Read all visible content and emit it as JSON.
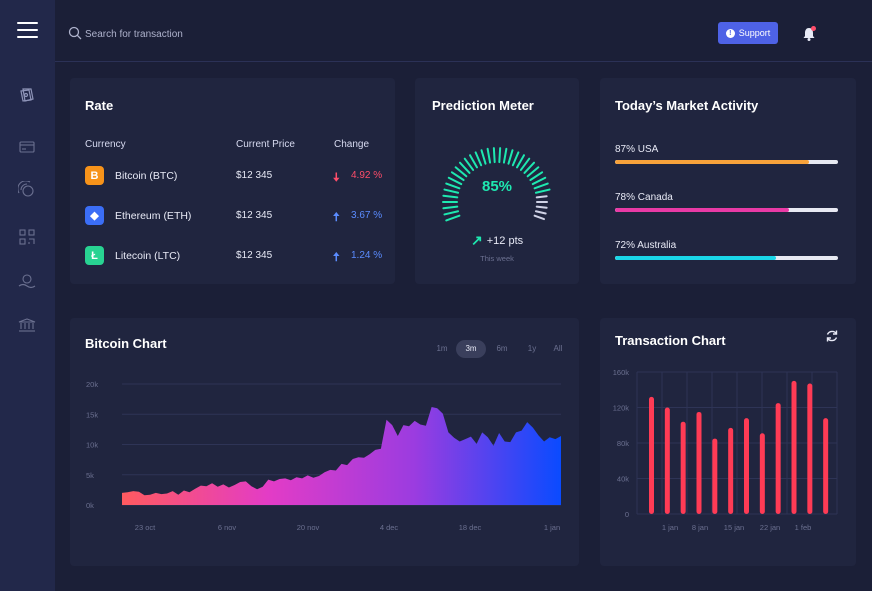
{
  "header": {
    "search_placeholder": "Search for transaction",
    "support_label": "Support"
  },
  "sidebar": {
    "items": [
      {
        "icon": "wallet-icon"
      },
      {
        "icon": "card-icon"
      },
      {
        "icon": "coins-icon"
      },
      {
        "icon": "qr-icon"
      },
      {
        "icon": "exchange-icon"
      },
      {
        "icon": "bank-icon"
      }
    ]
  },
  "rate": {
    "title": "Rate",
    "col_currency": "Currency",
    "col_price": "Current Price",
    "col_change": "Change",
    "rows": [
      {
        "name": "Bitcoin (BTC)",
        "symbol": "B",
        "color": "#f7931a",
        "price": "$12 345",
        "change": "4.92 %",
        "direction": "down"
      },
      {
        "name": "Ethereum (ETH)",
        "symbol": "◆",
        "color": "#3b6ef6",
        "price": "$12 345",
        "change": "3.67 %",
        "direction": "up"
      },
      {
        "name": "Litecoin (LTC)",
        "symbol": "Ł",
        "color": "#28d392",
        "price": "$12 345",
        "change": "1.24 %",
        "direction": "up"
      }
    ]
  },
  "prediction": {
    "title": "Prediction Meter",
    "value": "85%",
    "fraction": 0.85,
    "pts": "+12 pts",
    "period": "This week"
  },
  "market": {
    "title": "Today’s Market Activity",
    "items": [
      {
        "label": "87% USA",
        "value": 0.87,
        "color": "#f7a23b"
      },
      {
        "label": "78% Canada",
        "value": 0.78,
        "color": "#e93aa6"
      },
      {
        "label": "72% Australia",
        "value": 0.72,
        "color": "#1ad6e8"
      }
    ]
  },
  "bitcoin_chart": {
    "title": "Bitcoin Chart",
    "ranges": [
      "1m",
      "3m",
      "6m",
      "1y",
      "All"
    ],
    "active_range": "3m"
  },
  "transaction_chart": {
    "title": "Transaction Chart"
  },
  "chart_data": [
    {
      "type": "area",
      "title": "Bitcoin Chart",
      "y_ticks": [
        "0k",
        "5k",
        "10k",
        "15k",
        "20k"
      ],
      "ylim": [
        0,
        20000
      ],
      "x_ticks": [
        "23 oct",
        "6 nov",
        "20 nov",
        "4 dec",
        "18 dec",
        "1 jan"
      ],
      "values": [
        2000,
        2100,
        2300,
        2200,
        1600,
        1700,
        2000,
        1800,
        1900,
        2300,
        1700,
        2400,
        2100,
        2700,
        3200,
        3100,
        3600,
        3000,
        3400,
        2900,
        3300,
        3800,
        3900,
        3100,
        2600,
        3000,
        4200,
        3900,
        4300,
        4400,
        4100,
        4600,
        4400,
        4900,
        4500,
        4800,
        5400,
        5800,
        5700,
        6800,
        6600,
        7600,
        7900,
        7800,
        8400,
        9100,
        9300,
        14100,
        13200,
        11400,
        13200,
        13000,
        13900,
        13300,
        13100,
        16200,
        16000,
        15100,
        12000,
        11100,
        10500,
        10900,
        11300,
        10100,
        12000,
        11200,
        9800,
        11900,
        10500,
        10400,
        12000,
        12300,
        13700,
        12800,
        11500,
        10500,
        11200,
        10900,
        11400
      ],
      "grid": true,
      "gradient": [
        "#ff5a5f",
        "#e33cc6",
        "#9b3ce0",
        "#0a4bff"
      ]
    },
    {
      "type": "bar",
      "title": "Transaction Chart",
      "y_ticks": [
        "0",
        "40k",
        "80k",
        "120k",
        "160k"
      ],
      "ylim": [
        0,
        160000
      ],
      "x_ticks": [
        "1 jan",
        "8 jan",
        "15 jan",
        "22 jan",
        "1 feb"
      ],
      "values": [
        132000,
        120000,
        104000,
        115000,
        85000,
        97000,
        108000,
        91000,
        125000,
        150000,
        147000,
        108000
      ],
      "color": "#ff3b55",
      "grid": true
    }
  ]
}
